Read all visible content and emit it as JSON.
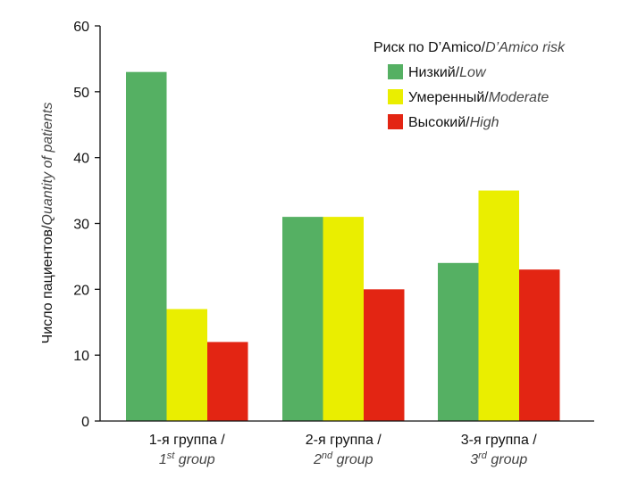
{
  "chart_data": {
    "type": "bar",
    "ylabel": "Число пациентов",
    "ylabel_en": "Quantity of patients",
    "ylim": [
      0,
      60
    ],
    "yticks": [
      0,
      10,
      20,
      30,
      40,
      50,
      60
    ],
    "categories": [
      {
        "ru": "1-я группа /",
        "en_num": "1",
        "en_sup": "st",
        "en_word": " group"
      },
      {
        "ru": "2-я группа /",
        "en_num": "2",
        "en_sup": "nd",
        "en_word": " group"
      },
      {
        "ru": "3-я группа /",
        "en_num": "3",
        "en_sup": "rd",
        "en_word": " group"
      }
    ],
    "legend": {
      "title_ru": "Риск по D’Amico",
      "title_en": "D’Amico risk",
      "placement": "top-right"
    },
    "series": [
      {
        "name_ru": "Низкий",
        "name_en": "Low",
        "color": "#55b063",
        "values": [
          53,
          31,
          24
        ]
      },
      {
        "name_ru": "Умеренный",
        "name_en": "Moderate",
        "color": "#eaee00",
        "values": [
          17,
          31,
          35
        ]
      },
      {
        "name_ru": "Высокий",
        "name_en": "High",
        "color": "#e32513",
        "values": [
          12,
          20,
          23
        ]
      }
    ]
  }
}
